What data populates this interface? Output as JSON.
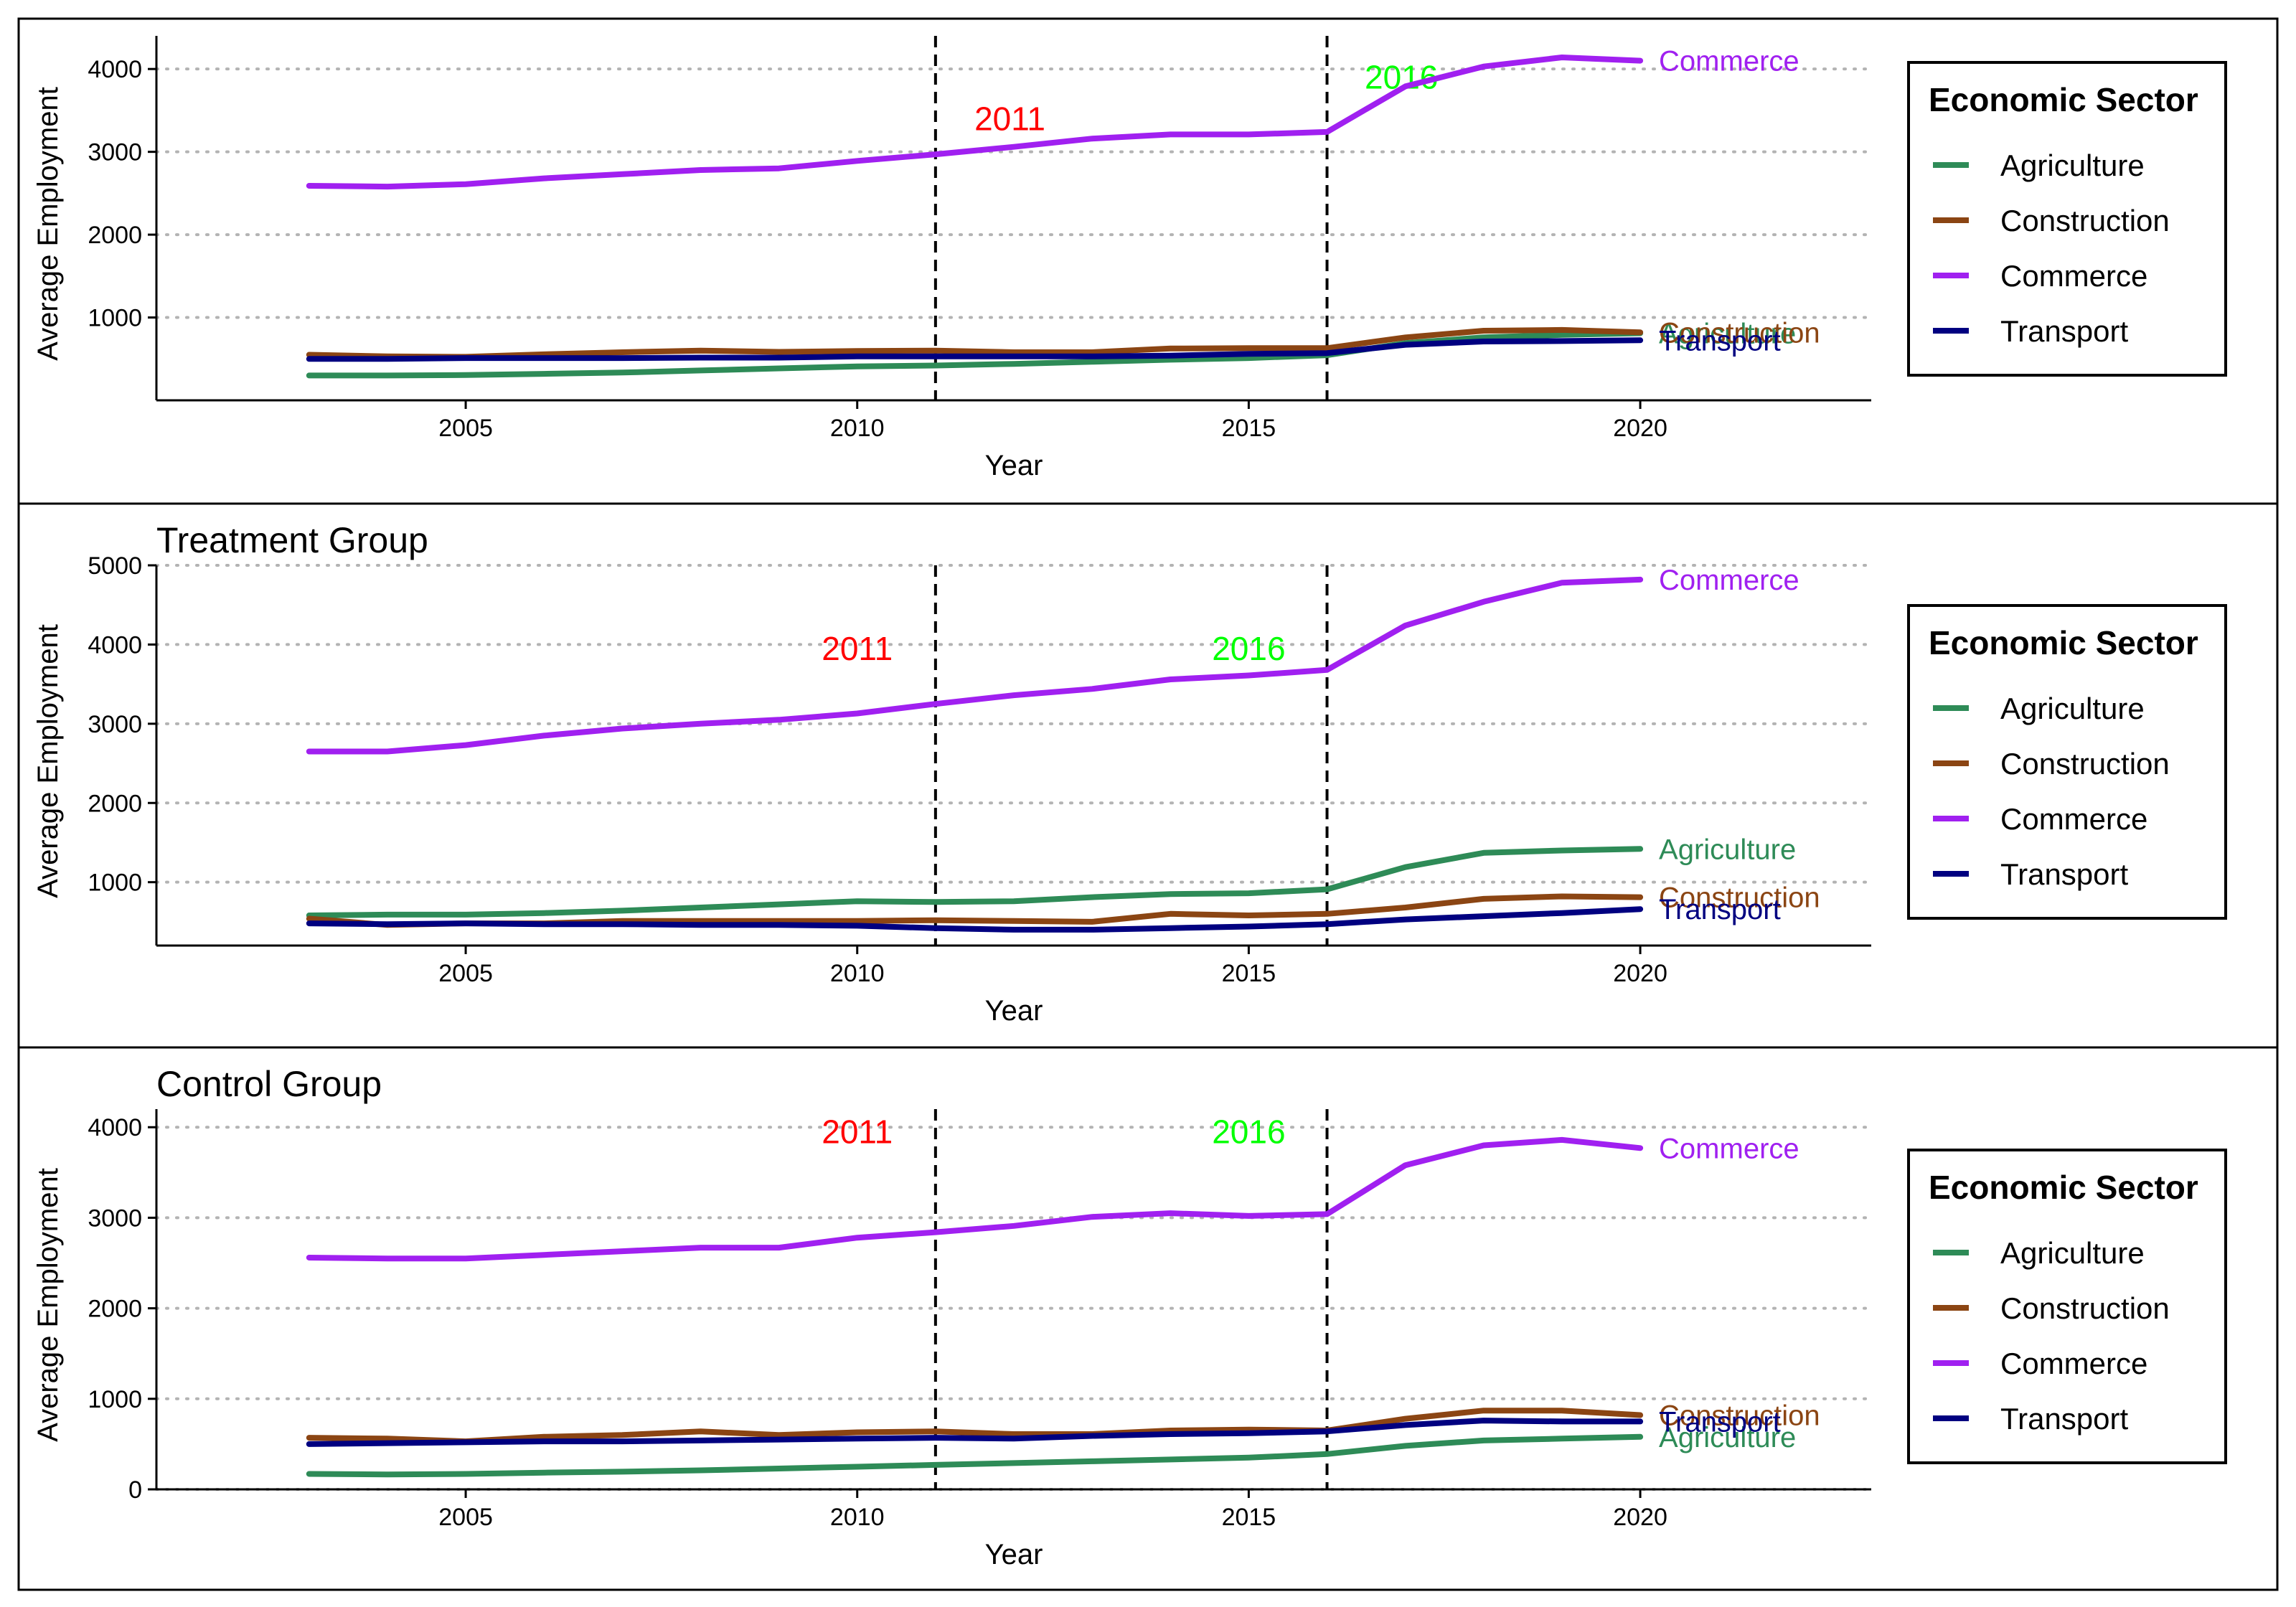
{
  "colors": {
    "Agriculture": "#2e8b57",
    "Construction": "#8b4513",
    "Commerce": "#a020f0",
    "Transport": "#000080",
    "year_2011": "#ff0000",
    "year_2016": "#00ff00"
  },
  "axes": {
    "xlabel": "Year",
    "ylabel": "Average Employment"
  },
  "legend": {
    "title": "Economic Sector",
    "items": [
      "Agriculture",
      "Construction",
      "Commerce",
      "Transport"
    ]
  },
  "chart_data": [
    {
      "type": "line",
      "title": "",
      "xlabel": "Year",
      "ylabel": "Average Employment",
      "x": [
        2003,
        2004,
        2005,
        2006,
        2007,
        2008,
        2009,
        2010,
        2011,
        2012,
        2013,
        2014,
        2015,
        2016,
        2017,
        2018,
        2019,
        2020
      ],
      "xlim": [
        2001.05,
        2022.95
      ],
      "ylim": [
        0,
        4400
      ],
      "xticks": [
        2005,
        2010,
        2015,
        2020
      ],
      "yticks": [
        1000,
        2000,
        3000,
        4000
      ],
      "grid": "horizontal dotted",
      "legend_position": "right",
      "vlines": [
        2011,
        2016
      ],
      "vline_annotations": [
        {
          "text": "2011",
          "x": 2011.95,
          "y": 3400,
          "color_key": "year_2011"
        },
        {
          "text": "2016",
          "x": 2016.95,
          "y": 3900,
          "color_key": "year_2016"
        }
      ],
      "series": [
        {
          "name": "Agriculture",
          "end_label": "Agriculture",
          "values": [
            300,
            300,
            305,
            320,
            335,
            360,
            385,
            410,
            420,
            440,
            465,
            490,
            510,
            545,
            690,
            760,
            790,
            810
          ]
        },
        {
          "name": "Construction",
          "end_label": "Construction",
          "values": [
            550,
            530,
            525,
            555,
            580,
            600,
            585,
            595,
            600,
            580,
            580,
            625,
            630,
            630,
            760,
            840,
            850,
            820
          ]
        },
        {
          "name": "Commerce",
          "end_label": "Commerce",
          "values": [
            2590,
            2580,
            2610,
            2680,
            2730,
            2780,
            2800,
            2890,
            2970,
            3060,
            3160,
            3210,
            3210,
            3240,
            3790,
            4030,
            4140,
            4100
          ]
        },
        {
          "name": "Transport",
          "end_label": "Transport",
          "values": [
            500,
            500,
            510,
            510,
            510,
            515,
            515,
            530,
            530,
            530,
            530,
            540,
            560,
            570,
            670,
            710,
            715,
            725
          ]
        }
      ]
    },
    {
      "type": "line",
      "title": "Treatment Group",
      "xlabel": "Year",
      "ylabel": "Average Employment",
      "x": [
        2003,
        2004,
        2005,
        2006,
        2007,
        2008,
        2009,
        2010,
        2011,
        2012,
        2013,
        2014,
        2015,
        2016,
        2017,
        2018,
        2019,
        2020
      ],
      "xlim": [
        2001.05,
        2022.95
      ],
      "ylim": [
        200,
        5000
      ],
      "xticks": [
        2005,
        2010,
        2015,
        2020
      ],
      "yticks": [
        1000,
        2000,
        3000,
        4000,
        5000
      ],
      "grid": "horizontal dotted",
      "legend_position": "right",
      "vlines": [
        2011,
        2016
      ],
      "vline_annotations": [
        {
          "text": "2011",
          "x": 2010,
          "y": 3950,
          "color_key": "year_2011"
        },
        {
          "text": "2016",
          "x": 2015,
          "y": 3950,
          "color_key": "year_2016"
        }
      ],
      "series": [
        {
          "name": "Agriculture",
          "end_label": "Agriculture",
          "values": [
            580,
            590,
            590,
            610,
            640,
            680,
            720,
            760,
            750,
            760,
            810,
            850,
            860,
            910,
            1190,
            1370,
            1400,
            1420
          ]
        },
        {
          "name": "Construction",
          "end_label": "Construction",
          "values": [
            540,
            460,
            480,
            480,
            510,
            510,
            510,
            510,
            520,
            510,
            500,
            600,
            580,
            600,
            680,
            790,
            820,
            810
          ]
        },
        {
          "name": "Commerce",
          "end_label": "Commerce",
          "values": [
            2650,
            2650,
            2730,
            2850,
            2940,
            3000,
            3050,
            3130,
            3250,
            3360,
            3440,
            3560,
            3610,
            3680,
            4240,
            4540,
            4780,
            4820
          ]
        },
        {
          "name": "Transport",
          "end_label": "Transport",
          "values": [
            480,
            470,
            480,
            470,
            470,
            460,
            460,
            450,
            420,
            400,
            400,
            420,
            440,
            470,
            530,
            570,
            610,
            660
          ]
        }
      ]
    },
    {
      "type": "line",
      "title": "Control Group",
      "xlabel": "Year",
      "ylabel": "Average Employment",
      "x": [
        2003,
        2004,
        2005,
        2006,
        2007,
        2008,
        2009,
        2010,
        2011,
        2012,
        2013,
        2014,
        2015,
        2016,
        2017,
        2018,
        2019,
        2020
      ],
      "xlim": [
        2001.05,
        2022.95
      ],
      "ylim": [
        0,
        4200
      ],
      "xticks": [
        2005,
        2010,
        2015,
        2020
      ],
      "yticks": [
        0,
        1000,
        2000,
        3000,
        4000
      ],
      "grid": "horizontal dotted",
      "legend_position": "right",
      "vlines": [
        2011,
        2016
      ],
      "vline_annotations": [
        {
          "text": "2011",
          "x": 2010,
          "y": 3950,
          "color_key": "year_2011"
        },
        {
          "text": "2016",
          "x": 2015,
          "y": 3950,
          "color_key": "year_2016"
        }
      ],
      "series": [
        {
          "name": "Agriculture",
          "end_label": "Agriculture",
          "values": [
            170,
            165,
            170,
            185,
            195,
            210,
            230,
            250,
            270,
            290,
            310,
            330,
            350,
            390,
            480,
            540,
            560,
            580
          ]
        },
        {
          "name": "Construction",
          "end_label": "Construction",
          "values": [
            570,
            560,
            530,
            580,
            600,
            640,
            600,
            630,
            640,
            610,
            610,
            650,
            660,
            650,
            780,
            870,
            870,
            820
          ]
        },
        {
          "name": "Commerce",
          "end_label": "Commerce",
          "values": [
            2560,
            2550,
            2550,
            2590,
            2630,
            2670,
            2670,
            2780,
            2840,
            2910,
            3010,
            3050,
            3020,
            3040,
            3580,
            3800,
            3860,
            3770
          ]
        },
        {
          "name": "Transport",
          "end_label": "Transport",
          "values": [
            500,
            510,
            520,
            530,
            530,
            540,
            550,
            560,
            570,
            560,
            590,
            610,
            620,
            640,
            710,
            760,
            750,
            750
          ]
        }
      ]
    }
  ]
}
